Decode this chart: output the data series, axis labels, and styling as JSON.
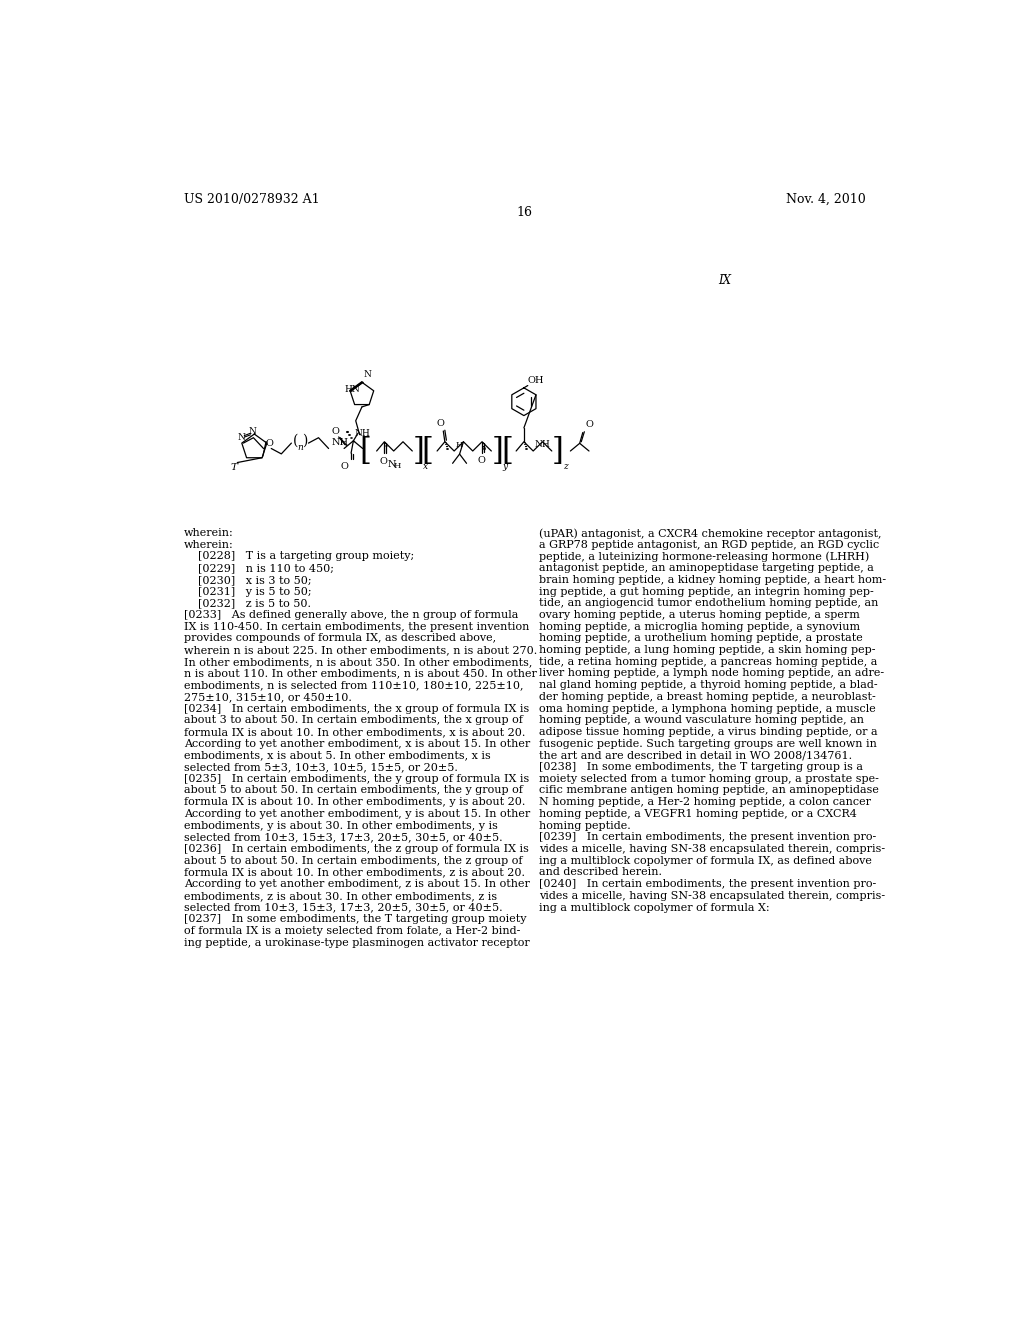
{
  "header_left": "US 2010/0278932 A1",
  "header_right": "Nov. 4, 2010",
  "page_number": "16",
  "formula_label": "IX",
  "background_color": "#ffffff",
  "text_color": "#000000",
  "body_text_left": [
    "wherein:",
    "    [0228]   T is a targeting group moiety;",
    "    [0229]   n is 110 to 450;",
    "    [0230]   x is 3 to 50;",
    "    [0231]   y is 5 to 50;",
    "    [0232]   z is 5 to 50.",
    "[0233]   As defined generally above, the n group of formula",
    "IX is 110-450. In certain embodiments, the present invention",
    "provides compounds of formula IX, as described above,",
    "wherein n is about 225. In other embodiments, n is about 270.",
    "In other embodiments, n is about 350. In other embodiments,",
    "n is about 110. In other embodiments, n is about 450. In other",
    "embodiments, n is selected from 110±10, 180±10, 225±10,",
    "275±10, 315±10, or 450±10.",
    "[0234]   In certain embodiments, the x group of formula IX is",
    "about 3 to about 50. In certain embodiments, the x group of",
    "formula IX is about 10. In other embodiments, x is about 20.",
    "According to yet another embodiment, x is about 15. In other",
    "embodiments, x is about 5. In other embodiments, x is",
    "selected from 5±3, 10±3, 10±5, 15±5, or 20±5.",
    "[0235]   In certain embodiments, the y group of formula IX is",
    "about 5 to about 50. In certain embodiments, the y group of",
    "formula IX is about 10. In other embodiments, y is about 20.",
    "According to yet another embodiment, y is about 15. In other",
    "embodiments, y is about 30. In other embodiments, y is",
    "selected from 10±3, 15±3, 17±3, 20±5, 30±5, or 40±5.",
    "[0236]   In certain embodiments, the z group of formula IX is",
    "about 5 to about 50. In certain embodiments, the z group of",
    "formula IX is about 10. In other embodiments, z is about 20.",
    "According to yet another embodiment, z is about 15. In other",
    "embodiments, z is about 30. In other embodiments, z is",
    "selected from 10±3, 15±3, 17±3, 20±5, 30±5, or 40±5.",
    "[0237]   In some embodiments, the T targeting group moiety",
    "of formula IX is a moiety selected from folate, a Her-2 bind-",
    "ing peptide, a urokinase-type plasminogen activator receptor"
  ],
  "body_text_right": [
    "(uPAR) antagonist, a CXCR4 chemokine receptor antagonist,",
    "a GRP78 peptide antagonist, an RGD peptide, an RGD cyclic",
    "peptide, a luteinizing hormone-releasing hormone (LHRH)",
    "antagonist peptide, an aminopeptidase targeting peptide, a",
    "brain homing peptide, a kidney homing peptide, a heart hom-",
    "ing peptide, a gut homing peptide, an integrin homing pep-",
    "tide, an angiogencid tumor endothelium homing peptide, an",
    "ovary homing peptide, a uterus homing peptide, a sperm",
    "homing peptide, a microglia homing peptide, a synovium",
    "homing peptide, a urothelium homing peptide, a prostate",
    "homing peptide, a lung homing peptide, a skin homing pep-",
    "tide, a retina homing peptide, a pancreas homing peptide, a",
    "liver homing peptide, a lymph node homing peptide, an adre-",
    "nal gland homing peptide, a thyroid homing peptide, a blad-",
    "der homing peptide, a breast homing peptide, a neuroblast-",
    "oma homing peptide, a lymphona homing peptide, a muscle",
    "homing peptide, a wound vasculature homing peptide, an",
    "adipose tissue homing peptide, a virus binding peptide, or a",
    "fusogenic peptide. Such targeting groups are well known in",
    "the art and are described in detail in WO 2008/134761.",
    "[0238]   In some embodiments, the T targeting group is a",
    "moiety selected from a tumor homing group, a prostate spe-",
    "cific membrane antigen homing peptide, an aminopeptidase",
    "N homing peptide, a Her-2 homing peptide, a colon cancer",
    "homing peptide, a VEGFR1 homing peptide, or a CXCR4",
    "homing peptide.",
    "[0239]   In certain embodiments, the present invention pro-",
    "vides a micelle, having SN-38 encapsulated therein, compris-",
    "ing a multiblock copolymer of formula IX, as defined above",
    "and described herein.",
    "[0240]   In certain embodiments, the present invention pro-",
    "vides a micelle, having SN-38 encapsulated therein, compris-",
    "ing a multiblock copolymer of formula X:"
  ]
}
